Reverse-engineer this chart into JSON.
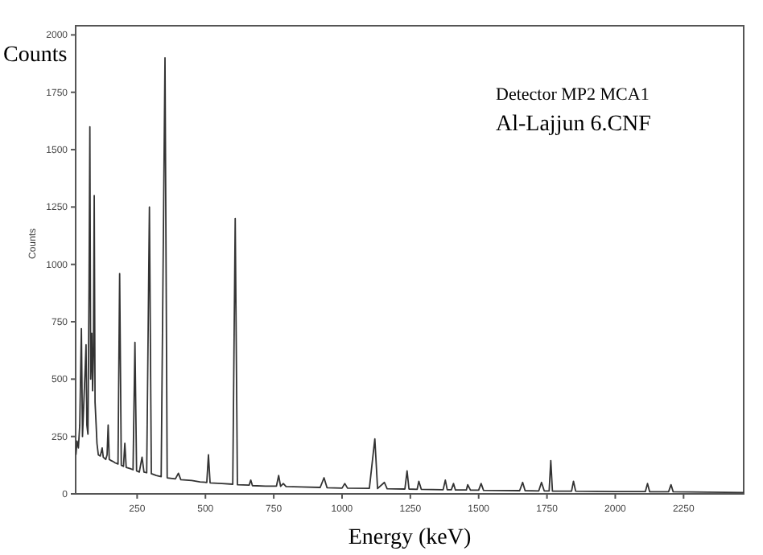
{
  "chart_data": {
    "type": "line",
    "xlabel": "Energy (keV)",
    "ylabel": "Counts",
    "annotations": [
      "Detector   MP2  MCA1",
      "Al-Lajjun 6.CNF"
    ],
    "xlim": [
      25,
      2470
    ],
    "ylim": [
      0,
      2040
    ],
    "xticks": [
      250,
      500,
      750,
      1000,
      1250,
      1500,
      1750,
      2000,
      2250
    ],
    "yticks": [
      0,
      250,
      500,
      750,
      1000,
      1250,
      1500,
      1750,
      2000
    ],
    "grid": false,
    "marker": "none",
    "line_style": "solid",
    "series": [
      {
        "color": "#333333",
        "x": [
          26,
          30,
          35,
          40,
          46,
          50,
          55,
          60,
          63,
          66,
          70,
          74,
          77,
          80,
          84,
          87,
          90,
          93,
          96,
          100,
          103,
          108,
          115,
          122,
          126,
          135,
          140,
          144,
          148,
          155,
          163,
          170,
          180,
          186,
          192,
          200,
          205,
          210,
          225,
          235,
          242,
          248,
          258,
          268,
          275,
          285,
          295,
          302,
          320,
          338,
          352,
          360,
          390,
          401,
          410,
          450,
          480,
          505,
          511,
          517,
          560,
          600,
          609,
          617,
          660,
          666,
          672,
          720,
          760,
          768,
          775,
          785,
          795,
          850,
          920,
          934,
          945,
          1000,
          1010,
          1020,
          1100,
          1120,
          1130,
          1155,
          1165,
          1230,
          1238,
          1245,
          1275,
          1281,
          1290,
          1370,
          1378,
          1385,
          1400,
          1408,
          1415,
          1455,
          1460,
          1470,
          1500,
          1509,
          1518,
          1650,
          1661,
          1670,
          1720,
          1730,
          1740,
          1758,
          1764,
          1770,
          1840,
          1847,
          1855,
          2000,
          2110,
          2118,
          2126,
          2195,
          2204,
          2212,
          2470
        ],
        "values": [
          170,
          230,
          200,
          300,
          720,
          250,
          400,
          550,
          650,
          300,
          260,
          900,
          1600,
          500,
          700,
          450,
          600,
          1300,
          400,
          300,
          220,
          170,
          165,
          200,
          160,
          150,
          170,
          300,
          150,
          145,
          140,
          135,
          130,
          960,
          125,
          120,
          220,
          115,
          110,
          105,
          660,
          100,
          95,
          160,
          95,
          92,
          1250,
          88,
          80,
          75,
          1900,
          70,
          65,
          90,
          62,
          58,
          52,
          50,
          170,
          48,
          45,
          42,
          1200,
          40,
          38,
          60,
          36,
          34,
          34,
          80,
          33,
          45,
          32,
          30,
          28,
          70,
          27,
          25,
          45,
          25,
          24,
          240,
          23,
          50,
          22,
          21,
          100,
          21,
          20,
          55,
          20,
          18,
          60,
          18,
          18,
          45,
          17,
          17,
          40,
          16,
          16,
          45,
          15,
          14,
          50,
          14,
          13,
          50,
          13,
          13,
          145,
          12,
          12,
          55,
          12,
          10,
          10,
          45,
          9,
          9,
          40,
          9,
          6
        ]
      }
    ]
  }
}
